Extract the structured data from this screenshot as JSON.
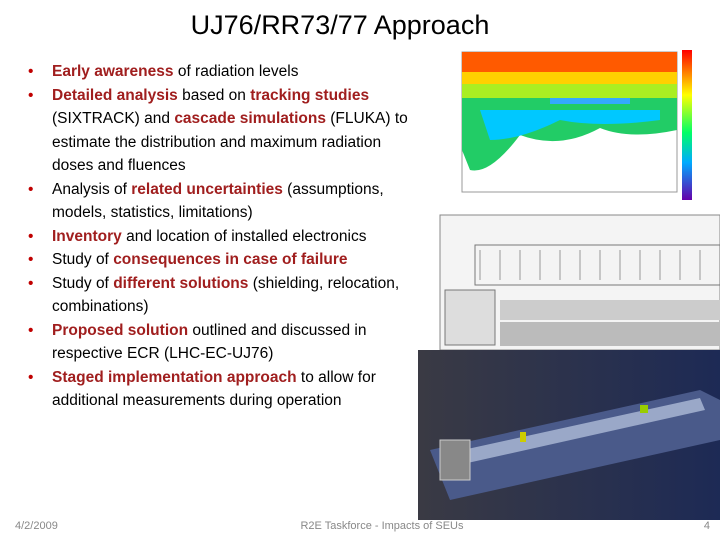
{
  "title": "UJ76/RR73/77 Approach",
  "bullets": [
    {
      "segments": [
        {
          "text": "Early awareness",
          "bold": true
        },
        {
          "text": " of radiation levels"
        }
      ]
    },
    {
      "segments": [
        {
          "text": "Detailed analysis",
          "bold": true
        },
        {
          "text": " based on "
        },
        {
          "text": "tracking studies",
          "bold": true
        },
        {
          "text": " (SIXTRACK) and "
        },
        {
          "text": "cascade simulations",
          "bold": true
        },
        {
          "text": " (FLUKA) to estimate the distribution and maximum radiation doses and fluences"
        }
      ]
    },
    {
      "segments": [
        {
          "text": "Analysis of "
        },
        {
          "text": "related uncertainties",
          "bold": true
        },
        {
          "text": " (assumptions, models, statistics, limitations)"
        }
      ]
    },
    {
      "segments": [
        {
          "text": "Inventory",
          "bold": true
        },
        {
          "text": " and location of installed electronics"
        }
      ]
    },
    {
      "segments": [
        {
          "text": "Study of "
        },
        {
          "text": "consequences in case of failure",
          "bold": true
        }
      ]
    },
    {
      "segments": [
        {
          "text": "Study of "
        },
        {
          "text": "different solutions",
          "bold": true
        },
        {
          "text": " (shielding, relocation, combinations)"
        }
      ]
    },
    {
      "segments": [
        {
          "text": "Proposed solution",
          "bold": true
        },
        {
          "text": " outlined and discussed in respective ECR (LHC-EC-UJ76)"
        }
      ]
    },
    {
      "segments": [
        {
          "text": "Staged implementation approach",
          "bold": true
        },
        {
          "text": " to allow for additional measurements during operation"
        }
      ]
    }
  ],
  "footer": {
    "date": "4/2/2009",
    "center": "R2E Taskforce - Impacts of SEUs",
    "page": "4"
  }
}
